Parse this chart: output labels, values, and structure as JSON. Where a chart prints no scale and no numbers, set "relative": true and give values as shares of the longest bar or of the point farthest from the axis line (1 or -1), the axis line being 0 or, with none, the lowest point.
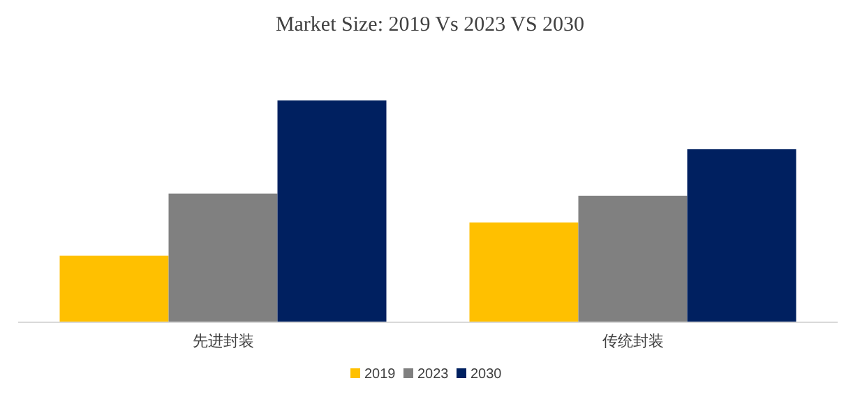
{
  "chart_data": {
    "type": "bar",
    "title": "Market Size: 2019 Vs 2023 VS 2030",
    "categories": [
      "先进封装",
      "传统封装"
    ],
    "relative": true,
    "legend": "bottom",
    "series": [
      {
        "name": "2019",
        "color": "#ffc000",
        "values": [
          0.3,
          0.45
        ]
      },
      {
        "name": "2023",
        "color": "#808080",
        "values": [
          0.58,
          0.57
        ]
      },
      {
        "name": "2030",
        "color": "#002060",
        "values": [
          1,
          0.78
        ]
      }
    ]
  }
}
